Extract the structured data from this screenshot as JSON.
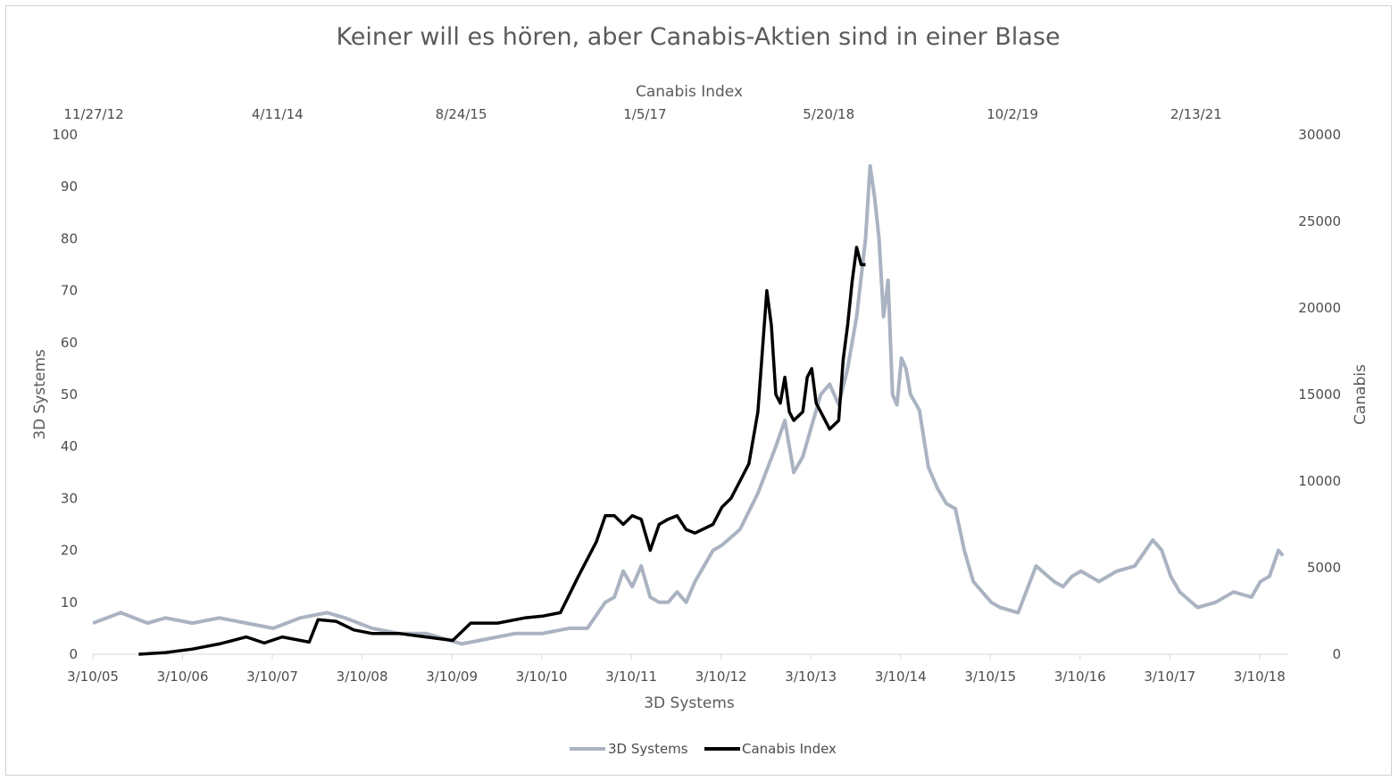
{
  "chart_data": {
    "type": "line",
    "title": "Keiner will es hören, aber Canabis-Aktien sind in einer Blase",
    "xlabel": "3D Systems",
    "x2label": "Canabis Index",
    "ylabel": "3D Systems",
    "y2label": "Canabis",
    "ylim": [
      0,
      100
    ],
    "y2lim": [
      0,
      30000
    ],
    "y_ticks": [
      "0",
      "10",
      "20",
      "30",
      "40",
      "50",
      "60",
      "70",
      "80",
      "90",
      "100"
    ],
    "y2_ticks": [
      "0",
      "5000",
      "10000",
      "15000",
      "20000",
      "25000",
      "30000"
    ],
    "x_ticks": [
      "3/10/05",
      "3/10/06",
      "3/10/07",
      "3/10/08",
      "3/10/09",
      "3/10/10",
      "3/10/11",
      "3/10/12",
      "3/10/13",
      "3/10/14",
      "3/10/15",
      "3/10/16",
      "3/10/17",
      "3/10/18"
    ],
    "x2_ticks": [
      "11/27/12",
      "4/11/14",
      "8/24/15",
      "1/5/17",
      "5/20/18",
      "10/2/19",
      "2/13/21"
    ],
    "grid": false,
    "legend_position": "bottom",
    "series": [
      {
        "name": "3D Systems",
        "axis": "primary",
        "color": "#aab3c1",
        "x": [
          2005.19,
          2005.5,
          2005.8,
          2006.0,
          2006.3,
          2006.6,
          2006.9,
          2007.2,
          2007.5,
          2007.8,
          2008.0,
          2008.3,
          2008.6,
          2008.9,
          2009.1,
          2009.3,
          2009.6,
          2009.9,
          2010.2,
          2010.5,
          2010.7,
          2010.9,
          2011.0,
          2011.1,
          2011.2,
          2011.3,
          2011.4,
          2011.5,
          2011.6,
          2011.7,
          2011.8,
          2011.9,
          2012.0,
          2012.1,
          2012.2,
          2012.4,
          2012.6,
          2012.8,
          2012.9,
          2013.0,
          2013.1,
          2013.2,
          2013.3,
          2013.4,
          2013.5,
          2013.6,
          2013.7,
          2013.8,
          2013.85,
          2013.9,
          2013.95,
          2014.0,
          2014.05,
          2014.1,
          2014.15,
          2014.2,
          2014.25,
          2014.3,
          2014.4,
          2014.5,
          2014.6,
          2014.7,
          2014.8,
          2014.9,
          2015.0,
          2015.1,
          2015.2,
          2015.3,
          2015.5,
          2015.7,
          2015.9,
          2016.0,
          2016.1,
          2016.2,
          2016.4,
          2016.6,
          2016.8,
          2017.0,
          2017.1,
          2017.2,
          2017.3,
          2017.5,
          2017.7,
          2017.9,
          2018.1,
          2018.2,
          2018.3,
          2018.4,
          2018.45
        ],
        "values": [
          6,
          8,
          6,
          7,
          6,
          7,
          6,
          5,
          7,
          8,
          7,
          5,
          4,
          4,
          3,
          2,
          3,
          4,
          4,
          5,
          5,
          10,
          11,
          16,
          13,
          17,
          11,
          10,
          10,
          12,
          10,
          14,
          17,
          20,
          21,
          24,
          31,
          40,
          45,
          35,
          38,
          44,
          50,
          52,
          48,
          55,
          65,
          80,
          94,
          88,
          80,
          65,
          72,
          50,
          48,
          57,
          55,
          50,
          47,
          36,
          32,
          29,
          28,
          20,
          14,
          12,
          10,
          9,
          8,
          17,
          14,
          13,
          15,
          16,
          14,
          16,
          17,
          22,
          20,
          15,
          12,
          9,
          10,
          12,
          11,
          14,
          15,
          20,
          19
        ]
      },
      {
        "name": "Canabis Index",
        "axis": "secondary",
        "color": "#000000",
        "x": [
          2005.7,
          2006.0,
          2006.3,
          2006.6,
          2006.9,
          2007.1,
          2007.3,
          2007.6,
          2007.7,
          2007.9,
          2008.1,
          2008.3,
          2008.6,
          2008.9,
          2009.2,
          2009.4,
          2009.7,
          2010.0,
          2010.2,
          2010.4,
          2010.6,
          2010.8,
          2010.9,
          2011.0,
          2011.1,
          2011.2,
          2011.3,
          2011.4,
          2011.5,
          2011.6,
          2011.7,
          2011.8,
          2011.9,
          2012.1,
          2012.2,
          2012.3,
          2012.4,
          2012.5,
          2012.6,
          2012.7,
          2012.75,
          2012.8,
          2012.85,
          2012.9,
          2012.95,
          2013.0,
          2013.1,
          2013.15,
          2013.2,
          2013.25,
          2013.3,
          2013.4,
          2013.5,
          2013.55,
          2013.6,
          2013.65,
          2013.7,
          2013.75,
          2013.8
        ],
        "values": [
          0,
          100,
          300,
          600,
          1000,
          650,
          1000,
          700,
          2000,
          1900,
          1400,
          1200,
          1200,
          1000,
          800,
          1800,
          1800,
          2100,
          2200,
          2400,
          4500,
          6500,
          8000,
          8000,
          7500,
          8000,
          7800,
          6000,
          7500,
          7800,
          8000,
          7200,
          7000,
          7500,
          8500,
          9000,
          10000,
          11000,
          14000,
          21000,
          19000,
          15000,
          14500,
          16000,
          14000,
          13500,
          14000,
          16000,
          16500,
          14500,
          14000,
          13000,
          13500,
          17000,
          19000,
          21500,
          23500,
          22500,
          22500
        ]
      }
    ]
  }
}
